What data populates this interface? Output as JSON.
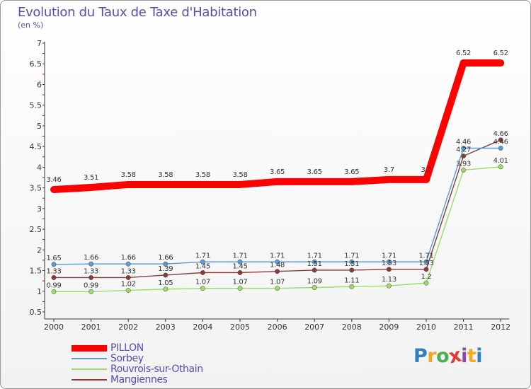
{
  "title": "Evolution du Taux de Taxe d'Habitation",
  "unit_label": "(en %)",
  "chart_data": {
    "type": "line",
    "title": "Evolution du Taux de Taxe d'Habitation",
    "ylabel": "(en %)",
    "xlabel": "",
    "categories": [
      "2000",
      "2001",
      "2002",
      "2003",
      "2004",
      "2005",
      "2006",
      "2007",
      "2008",
      "2009",
      "2010",
      "2011",
      "2012"
    ],
    "ylim": [
      0.5,
      7
    ],
    "yticks": [
      "0.5",
      "1",
      "1.5",
      "2",
      "2.5",
      "3",
      "3.5",
      "4",
      "4.5",
      "5",
      "5.5",
      "6",
      "6.5",
      "7"
    ],
    "grid": false,
    "legend_position": "bottom-left",
    "series": [
      {
        "name": "PILLON",
        "color": "#ff0000",
        "values": [
          3.46,
          3.51,
          3.58,
          3.58,
          3.58,
          3.58,
          3.65,
          3.65,
          3.65,
          3.7,
          3.7,
          6.52,
          6.52
        ],
        "labels": [
          "3.46",
          "3.51",
          "3.58",
          "3.58",
          "3.58",
          "3.58",
          "3.65",
          "3.65",
          "3.65",
          "3.7",
          "3.7",
          "6.52",
          "6.52"
        ]
      },
      {
        "name": "Sorbey",
        "color": "#5b9bd5",
        "values": [
          1.65,
          1.66,
          1.66,
          1.66,
          1.71,
          1.71,
          1.71,
          1.71,
          1.71,
          1.71,
          1.71,
          4.46,
          4.46
        ],
        "labels": [
          "1.65",
          "1.66",
          "1.66",
          "1.66",
          "1.71",
          "1.71",
          "1.71",
          "1.71",
          "1.71",
          "1.71",
          "1.71",
          "4.46",
          "4.46"
        ]
      },
      {
        "name": "Rouvrois-sur-Othain",
        "color": "#99dd66",
        "values": [
          0.99,
          0.99,
          1.02,
          1.05,
          1.07,
          1.07,
          1.07,
          1.09,
          1.11,
          1.13,
          1.2,
          3.93,
          4.01
        ],
        "labels": [
          "0.99",
          "0.99",
          "1.02",
          "1.05",
          "1.07",
          "1.07",
          "1.07",
          "1.09",
          "1.11",
          "1.13",
          "1.2",
          "3.93",
          "4.01"
        ]
      },
      {
        "name": "Mangiennes",
        "color": "#8b3a3a",
        "values": [
          1.33,
          1.33,
          1.33,
          1.39,
          1.45,
          1.45,
          1.48,
          1.51,
          1.51,
          1.53,
          1.53,
          4.27,
          4.66
        ],
        "labels": [
          "1.33",
          "1.33",
          "1.33",
          "1.39",
          "1.45",
          "1.45",
          "1.48",
          "1.51",
          "1.51",
          "1.53",
          "1.53",
          "4.27",
          "4.66"
        ]
      }
    ]
  },
  "logo": {
    "letters": [
      "P",
      "r",
      "o",
      "x",
      "i",
      "t",
      "i"
    ],
    "colors": [
      "#2f7fc1",
      "#f5a623",
      "#4caf50",
      "#e53935",
      "#8e44ad",
      "#f5a623",
      "#2f7fc1"
    ]
  }
}
